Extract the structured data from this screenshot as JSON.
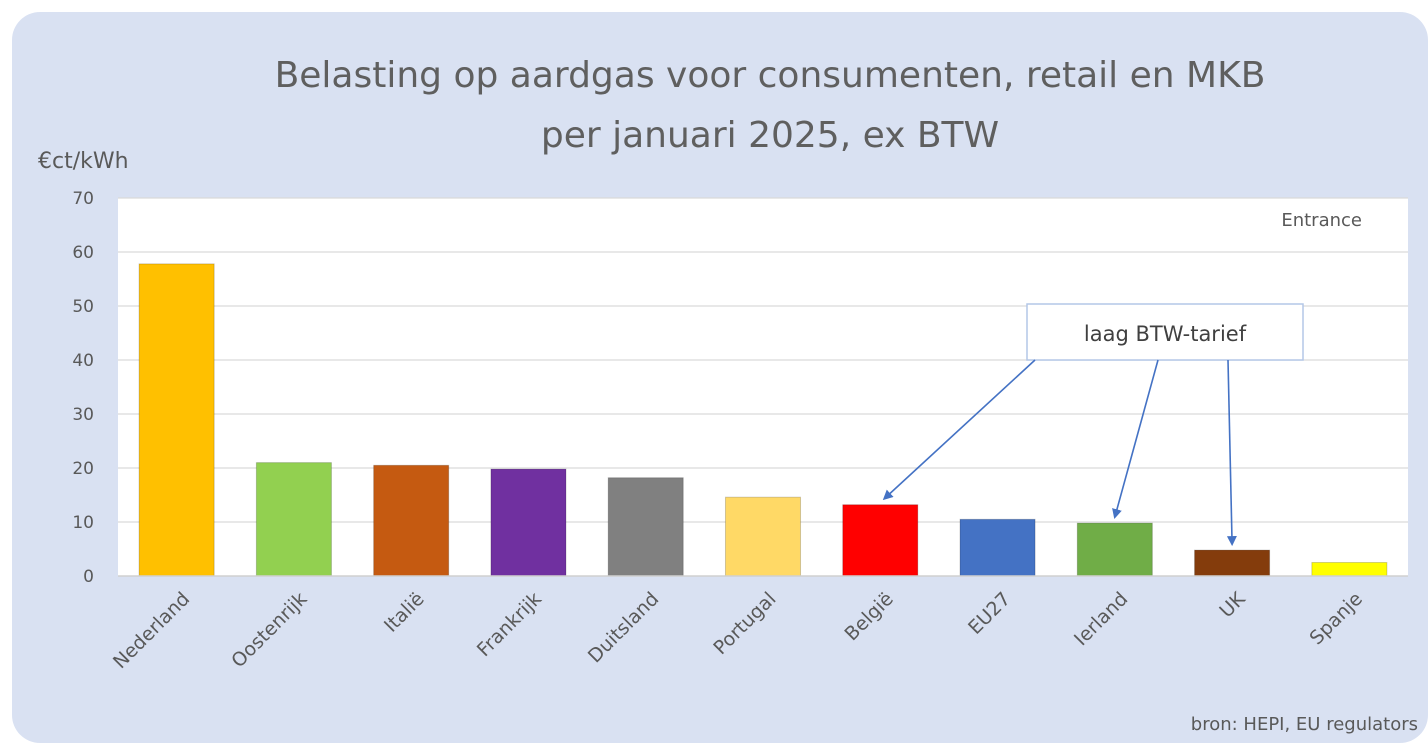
{
  "chart_data": {
    "type": "bar",
    "title_lines": [
      "Belasting op aardgas voor consumenten, retail en MKB",
      "per januari 2025, ex BTW"
    ],
    "ylabel": "€ct/kWh",
    "xlabel": "",
    "ylim": [
      0,
      70
    ],
    "yticks": [
      0,
      10,
      20,
      30,
      40,
      50,
      60,
      70
    ],
    "grid": true,
    "legend": "none",
    "categories": [
      "Nederland",
      "Oostenrijk",
      "Italië",
      "Frankrijk",
      "Duitsland",
      "Portugal",
      "België",
      "EU27",
      "Ierland",
      "UK",
      "Spanje"
    ],
    "values": [
      57.8,
      21.0,
      20.5,
      19.8,
      18.2,
      14.6,
      13.2,
      10.5,
      9.8,
      4.8,
      2.5
    ],
    "colors": [
      "#ffc000",
      "#92d050",
      "#c55a11",
      "#7030a0",
      "#808080",
      "#ffd966",
      "#ff0000",
      "#4472c4",
      "#70ad47",
      "#843c0c",
      "#ffff00"
    ],
    "annotations": {
      "corner_label": "Entrance",
      "callout_label": "laag BTW-tarief",
      "callout_targets": [
        "België",
        "Ierland",
        "UK"
      ],
      "source": "bron: HEPI, EU regulators"
    }
  }
}
